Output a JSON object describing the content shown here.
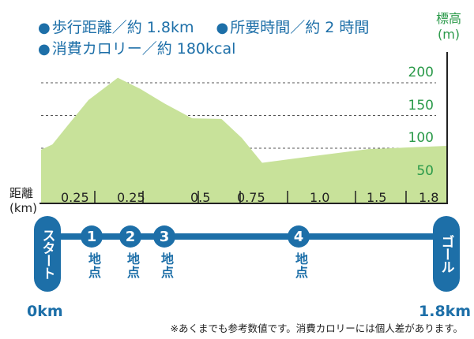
{
  "stats": {
    "distance": "歩行距離／約 1.8km",
    "time": "所要時間／約 2 時間",
    "calories": "消費カロリー／約 180kcal"
  },
  "elevation_unit": {
    "label": "標高",
    "unit": "(m)"
  },
  "distance_unit": {
    "label": "距離",
    "unit": "(km)"
  },
  "chart_data": {
    "type": "area",
    "ylabel": "標高 (m)",
    "yticks": [
      50,
      100,
      150,
      200
    ],
    "ylim": [
      0,
      230
    ],
    "grid": true,
    "x_tick_labels": [
      "0.25",
      "0.25",
      "0.5",
      "0.75",
      "1.0",
      "1.5",
      "1.8"
    ],
    "profile": [
      {
        "x": 0.0,
        "elevation": 82
      },
      {
        "x": 0.05,
        "elevation": 90
      },
      {
        "x": 0.12,
        "elevation": 120
      },
      {
        "x": 0.21,
        "elevation": 158
      },
      {
        "x": 0.34,
        "elevation": 192
      },
      {
        "x": 0.44,
        "elevation": 175
      },
      {
        "x": 0.55,
        "elevation": 152
      },
      {
        "x": 0.67,
        "elevation": 130
      },
      {
        "x": 0.8,
        "elevation": 129
      },
      {
        "x": 0.89,
        "elevation": 100
      },
      {
        "x": 0.98,
        "elevation": 62
      },
      {
        "x": 1.2,
        "elevation": 72
      },
      {
        "x": 1.45,
        "elevation": 83
      },
      {
        "x": 1.8,
        "elevation": 88
      }
    ],
    "fill_color": "#c8e29a"
  },
  "route": {
    "start": "スタート",
    "goal": "ゴール",
    "start_distance": "0km",
    "goal_distance": "1.8km",
    "points": [
      {
        "number": "1",
        "label": "地点"
      },
      {
        "number": "2",
        "label": "地点"
      },
      {
        "number": "3",
        "label": "地点"
      },
      {
        "number": "4",
        "label": "地点"
      }
    ]
  },
  "note": "※あくまでも参考数値です。消費カロリーには個人差があります。",
  "colors": {
    "primary": "#1d6fa8",
    "elevation": "#2b9a4a",
    "area": "#c8e29a"
  }
}
